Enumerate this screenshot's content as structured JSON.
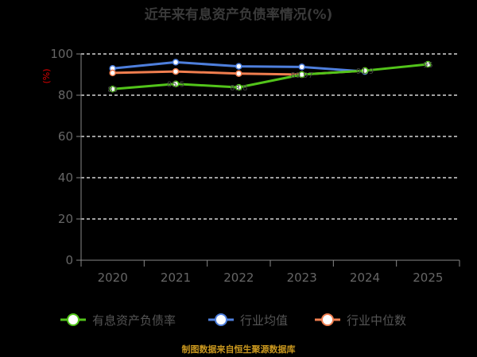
{
  "chart_data": {
    "type": "line",
    "title": "近年来有息资产负债率情况(%)",
    "ylabel": "(%)",
    "ylim": [
      0,
      100
    ],
    "yticks": [
      "0",
      "20",
      "40",
      "60",
      "80",
      "100"
    ],
    "categories": [
      "2020",
      "2021",
      "2022",
      "2023",
      "2024",
      "2025"
    ],
    "grid": true,
    "legend_position": "bottom",
    "series": [
      {
        "name": "有息资产负债率",
        "color": "#52c41a",
        "values": [
          83.0,
          85.5,
          83.8,
          90.0,
          91.9,
          95.0
        ],
        "labels": [
          "83",
          "85.5",
          "83.8",
          "89.97",
          "91.9",
          "95"
        ]
      },
      {
        "name": "行业均值",
        "color": "#4e7fdd",
        "values": [
          93.0,
          96.0,
          94.0,
          93.7,
          91.5,
          null
        ]
      },
      {
        "name": "行业中位数",
        "color": "#f07e4f",
        "values": [
          90.8,
          91.5,
          90.5,
          90.0,
          91.9,
          null
        ]
      }
    ]
  },
  "footer": {
    "source": "制图数据来自恒生聚源数据库"
  }
}
